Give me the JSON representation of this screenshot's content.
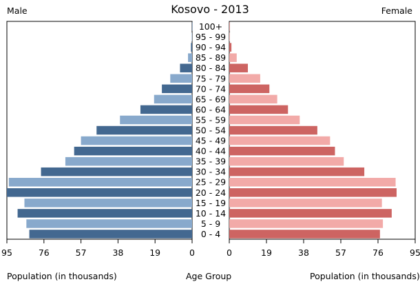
{
  "chart_data": {
    "type": "bar",
    "title": "Kosovo - 2013",
    "left_label": "Male",
    "right_label": "Female",
    "xlabel_left": "Population (in thousands)",
    "xlabel_center": "Age Group",
    "xlabel_right": "Population (in thousands)",
    "xlim": [
      0,
      95
    ],
    "xticks": [
      "95",
      "76",
      "57",
      "38",
      "19",
      "0"
    ],
    "xticks_right": [
      "0",
      "19",
      "38",
      "57",
      "76",
      "95"
    ],
    "categories": [
      "100+",
      "95 - 99",
      "90 - 94",
      "85 - 89",
      "80 - 84",
      "75 - 79",
      "70 - 74",
      "65 - 69",
      "60 - 64",
      "55 - 59",
      "50 - 54",
      "45 - 49",
      "40 - 44",
      "35 - 39",
      "30 - 34",
      "25 - 29",
      "20 - 24",
      "15 - 19",
      "10 - 14",
      "5 - 9",
      "0 - 4"
    ],
    "series": [
      {
        "name": "Male",
        "values": [
          0.05,
          0.2,
          0.6,
          2.1,
          6.2,
          11.2,
          15.5,
          19.5,
          26.5,
          37.0,
          49.0,
          57.0,
          60.5,
          65.0,
          77.5,
          94.0,
          95.0,
          86.0,
          89.5,
          85.0,
          83.5
        ]
      },
      {
        "name": "Female",
        "values": [
          0.05,
          0.25,
          1.1,
          3.8,
          9.5,
          15.8,
          20.5,
          24.5,
          30.0,
          36.0,
          45.0,
          51.5,
          54.0,
          58.5,
          69.0,
          85.0,
          85.5,
          78.0,
          83.0,
          78.5,
          77.0
        ]
      }
    ],
    "colors": {
      "male_dark": "#436890",
      "male_light": "#88a9cc",
      "female_dark": "#cd6462",
      "female_light": "#f2aaa8"
    },
    "grid": false
  }
}
